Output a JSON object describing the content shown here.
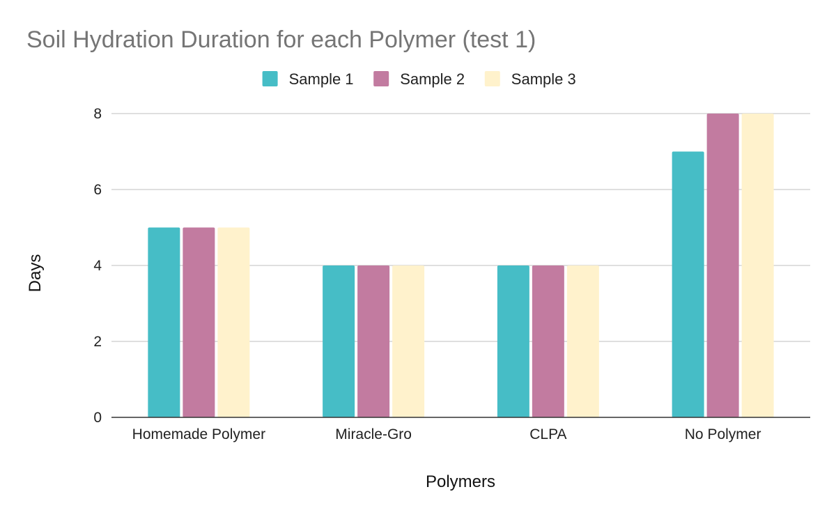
{
  "chart_data": {
    "type": "bar",
    "title": "Soil Hydration Duration for each Polymer (test 1)",
    "xlabel": "Polymers",
    "ylabel": "Days",
    "categories": [
      "Homemade Polymer",
      "Miracle-Gro",
      "CLPA",
      "No Polymer"
    ],
    "series": [
      {
        "name": "Sample 1",
        "color": "#46bdc6",
        "values": [
          5,
          4,
          4,
          7
        ]
      },
      {
        "name": "Sample 2",
        "color": "#c27ba0",
        "values": [
          5,
          4,
          4,
          8
        ]
      },
      {
        "name": "Sample 3",
        "color": "#fff2cc",
        "values": [
          5,
          4,
          4,
          8
        ]
      }
    ],
    "ylim": [
      0,
      8
    ],
    "yticks": [
      0,
      2,
      4,
      6,
      8
    ],
    "grid": true,
    "legend_position": "top"
  }
}
